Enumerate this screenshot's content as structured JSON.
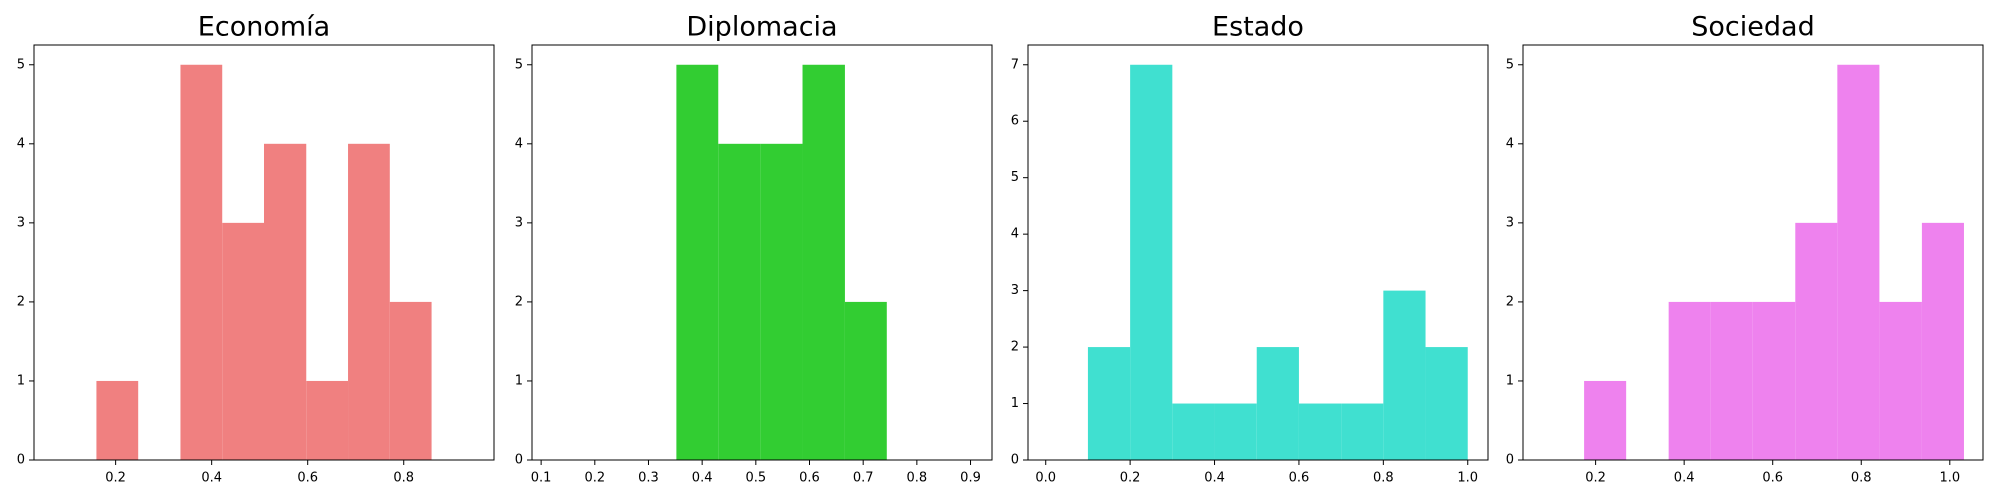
{
  "chart_data": [
    {
      "type": "histogram",
      "title": "Economía",
      "color": "#f08080",
      "bins": [
        0.16,
        0.247,
        0.335,
        0.422,
        0.509,
        0.597,
        0.684,
        0.771,
        0.858
      ],
      "values": [
        1,
        0,
        5,
        3,
        4,
        1,
        4,
        2
      ],
      "xlim": [
        0.03,
        0.988
      ],
      "ylim": [
        0,
        5.25
      ],
      "xticks": [
        0.2,
        0.4,
        0.6,
        0.8
      ],
      "yticks": [
        0,
        1,
        2,
        3,
        4,
        5
      ]
    },
    {
      "type": "histogram",
      "title": "Diplomacia",
      "color": "#32cd32",
      "bins": [
        0.352,
        0.43,
        0.509,
        0.587,
        0.666,
        0.744
      ],
      "values": [
        5,
        4,
        4,
        5,
        2
      ],
      "xlim": [
        0.083,
        0.94
      ],
      "ylim": [
        0,
        5.25
      ],
      "xticks": [
        0.1,
        0.2,
        0.3,
        0.4,
        0.5,
        0.6,
        0.7,
        0.8,
        0.9
      ],
      "yticks": [
        0,
        1,
        2,
        3,
        4,
        5
      ]
    },
    {
      "type": "histogram",
      "title": "Estado",
      "color": "#40e0d0",
      "bins": [
        0.1,
        0.2,
        0.3,
        0.4,
        0.5,
        0.6,
        0.7,
        0.8,
        0.9,
        1.0
      ],
      "values": [
        2,
        7,
        1,
        1,
        2,
        1,
        1,
        3,
        2
      ],
      "xlim": [
        -0.042,
        1.048
      ],
      "ylim": [
        0,
        7.35
      ],
      "xticks": [
        {
          "value": 0,
          "label": "0.0"
        },
        0.2,
        0.4,
        0.6,
        0.8,
        {
          "value": 1,
          "label": "1.0"
        }
      ],
      "yticks": [
        0,
        1,
        2,
        3,
        4,
        5,
        6,
        7
      ]
    },
    {
      "type": "histogram",
      "title": "Sociedad",
      "color": "#ee82ee",
      "bins": [
        0.174,
        0.269,
        0.365,
        0.46,
        0.555,
        0.651,
        0.746,
        0.841,
        0.937,
        1.032
      ],
      "values": [
        1,
        0,
        2,
        2,
        2,
        3,
        5,
        2,
        3
      ],
      "xlim": [
        0.036,
        1.075
      ],
      "ylim": [
        0,
        5.25
      ],
      "xticks": [
        0.2,
        0.4,
        0.6,
        0.8,
        {
          "value": 1,
          "label": "1.0"
        }
      ],
      "yticks": [
        0,
        1,
        2,
        3,
        4,
        5
      ]
    }
  ]
}
